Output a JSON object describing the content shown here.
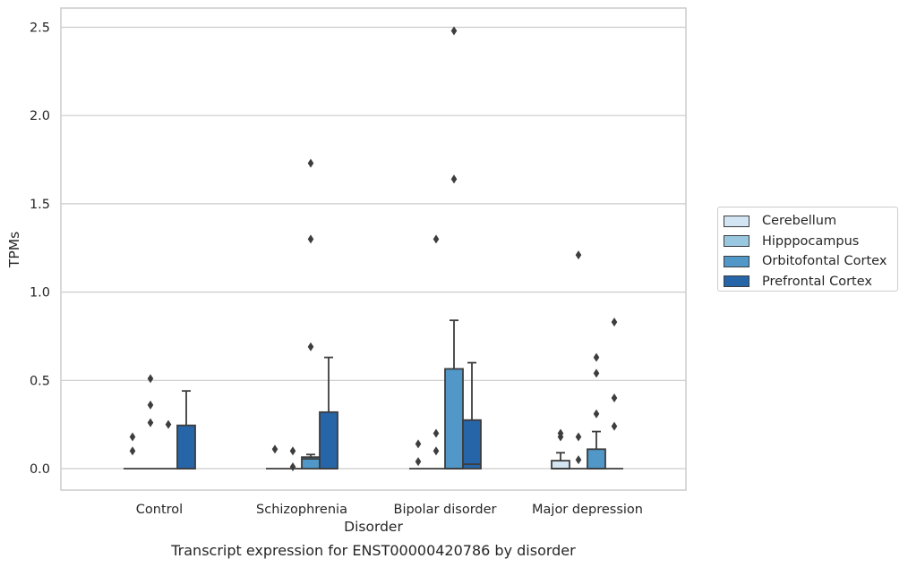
{
  "chart_data": {
    "type": "box",
    "title": "",
    "caption": "Transcript expression for ENST00000420786 by disorder",
    "xlabel": "Disorder",
    "ylabel": "TPMs",
    "ylim": [
      -0.12,
      2.62
    ],
    "yticks": [
      "0.0",
      "0.5",
      "1.0",
      "1.5",
      "2.0",
      "2.5"
    ],
    "grid": "horizontal",
    "legend_position": "right",
    "categories": [
      "Control",
      "Schizophrenia",
      "Bipolar disorder",
      "Major depression"
    ],
    "series": [
      {
        "name": "Cerebellum",
        "color": "#d3e4f3",
        "boxes": [
          {
            "min": 0,
            "q1": 0,
            "median": 0,
            "q3": 0,
            "max": 0,
            "outliers": [
              0.1,
              0.18
            ]
          },
          {
            "min": 0,
            "q1": 0,
            "median": 0,
            "q3": 0,
            "max": 0,
            "outliers": [
              0.11
            ]
          },
          {
            "min": 0,
            "q1": 0,
            "median": 0,
            "q3": 0,
            "max": 0,
            "outliers": [
              0.04,
              0.14
            ]
          },
          {
            "min": 0,
            "q1": 0,
            "median": 0,
            "q3": 0.045,
            "max": 0.09,
            "outliers": [
              0.18,
              0.2
            ]
          }
        ]
      },
      {
        "name": "Hipppocampus",
        "color": "#9ac7e0",
        "boxes": [
          {
            "min": 0,
            "q1": 0,
            "median": 0,
            "q3": 0,
            "max": 0,
            "outliers": [
              0.26,
              0.36,
              0.51
            ]
          },
          {
            "min": 0,
            "q1": 0,
            "median": 0,
            "q3": 0,
            "max": 0,
            "outliers": [
              0.01,
              0.1
            ]
          },
          {
            "min": 0,
            "q1": 0,
            "median": 0,
            "q3": 0,
            "max": 0,
            "outliers": [
              0.1,
              0.2,
              1.3
            ]
          },
          {
            "min": 0,
            "q1": 0,
            "median": 0,
            "q3": 0,
            "max": 0,
            "outliers": [
              0.05,
              0.18,
              1.21
            ]
          }
        ]
      },
      {
        "name": "Orbitofontal Cortex",
        "color": "#5197c7",
        "boxes": [
          {
            "min": 0,
            "q1": 0,
            "median": 0,
            "q3": 0,
            "max": 0,
            "outliers": [
              0.25
            ]
          },
          {
            "min": 0,
            "q1": 0,
            "median": 0.055,
            "q3": 0.065,
            "max": 0.08,
            "outliers": [
              0.69,
              1.3,
              1.73
            ]
          },
          {
            "min": 0,
            "q1": 0,
            "median": 0,
            "q3": 0.565,
            "max": 0.84,
            "outliers": [
              1.64,
              2.48
            ]
          },
          {
            "min": 0,
            "q1": 0,
            "median": 0,
            "q3": 0.11,
            "max": 0.21,
            "outliers": [
              0.31,
              0.54,
              0.63
            ]
          }
        ]
      },
      {
        "name": "Prefrontal Cortex",
        "color": "#2565a8",
        "boxes": [
          {
            "min": 0,
            "q1": 0,
            "median": 0,
            "q3": 0.245,
            "max": 0.44,
            "outliers": []
          },
          {
            "min": 0,
            "q1": 0,
            "median": 0,
            "q3": 0.32,
            "max": 0.63,
            "outliers": []
          },
          {
            "min": 0,
            "q1": 0,
            "median": 0.025,
            "q3": 0.275,
            "max": 0.6,
            "outliers": []
          },
          {
            "min": 0,
            "q1": 0,
            "median": 0,
            "q3": 0,
            "max": 0,
            "outliers": [
              0.24,
              0.4,
              0.83
            ]
          }
        ]
      }
    ]
  }
}
